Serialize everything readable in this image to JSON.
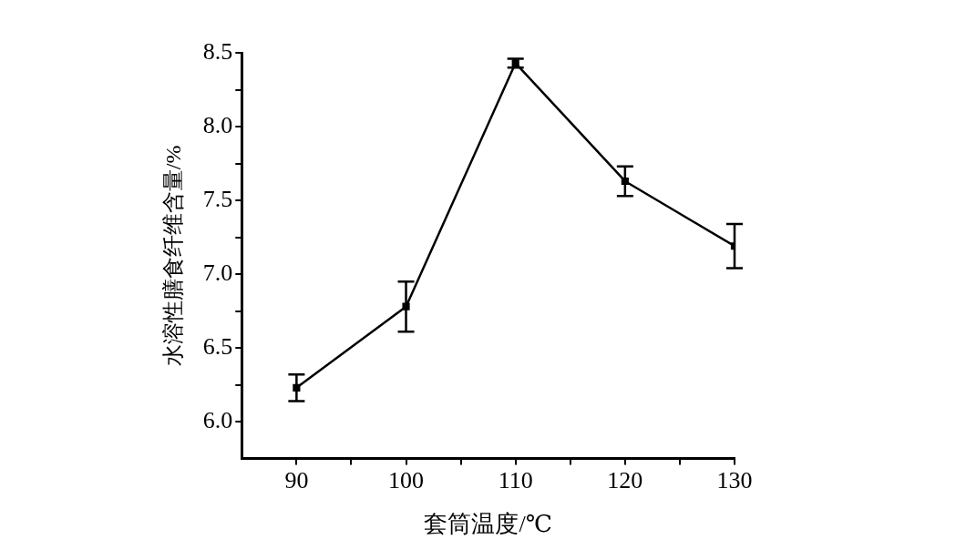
{
  "chart_data": {
    "type": "line",
    "xlabel": "套筒温度/℃",
    "ylabel": "水溶性膳食纤维含量/%",
    "x": [
      90,
      100,
      110,
      120,
      130
    ],
    "series": [
      {
        "color": "#000000",
        "values": [
          6.23,
          6.78,
          8.43,
          7.63,
          7.19
        ],
        "errors": [
          0.09,
          0.17,
          0.03,
          0.1,
          0.15
        ]
      }
    ],
    "xlim": [
      85,
      130
    ],
    "xticks": [
      90,
      {
        "value": 95,
        "label": null
      },
      100,
      {
        "value": 105,
        "label": null
      },
      110,
      {
        "value": 115,
        "label": null
      },
      120,
      {
        "value": 125,
        "label": null
      },
      130
    ],
    "ylim": [
      5.75,
      8.5
    ],
    "yticks": [
      {
        "value": 6,
        "label": "6.0"
      },
      {
        "value": 6.25,
        "label": null
      },
      6.5,
      {
        "value": 6.75,
        "label": null
      },
      {
        "value": 7,
        "label": "7.0"
      },
      {
        "value": 7.25,
        "label": null
      },
      7.5,
      {
        "value": 7.75,
        "label": null
      },
      {
        "value": 8,
        "label": "8.0"
      },
      {
        "value": 8.25,
        "label": null
      },
      8.5
    ],
    "grid": false,
    "legend": false,
    "marker": "square",
    "line_style": "solid"
  }
}
